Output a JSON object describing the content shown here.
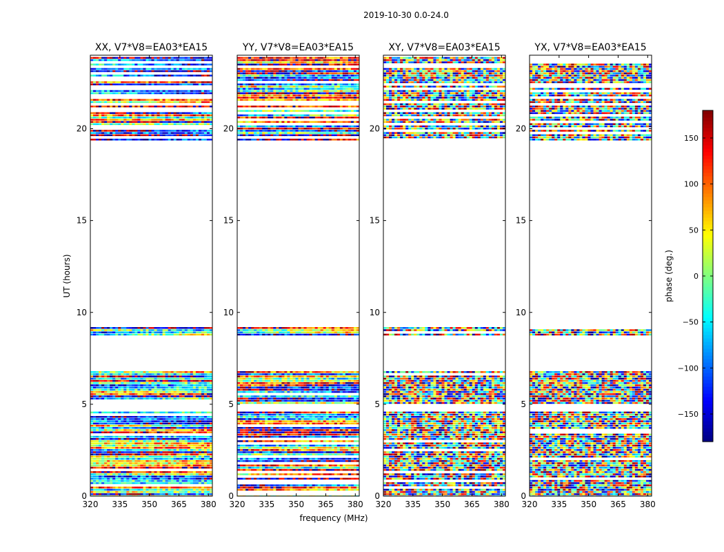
{
  "chart_data": {
    "type": "heatmap",
    "suptitle": "2019-10-30 0.0-24.0",
    "xlabel": "frequency (MHz)",
    "ylabel": "UT (hours)",
    "xlim": [
      320,
      382
    ],
    "ylim": [
      0,
      24
    ],
    "x_ticks": [
      320,
      335,
      350,
      365,
      380
    ],
    "y_ticks": [
      0,
      5,
      10,
      15,
      20
    ],
    "panels": [
      {
        "title": "XX, V7*V8=EA03*EA15",
        "pol": "XX",
        "structured": true,
        "bands": [
          [
            0.0,
            4.6
          ],
          [
            5.0,
            6.8
          ],
          [
            8.8,
            9.2
          ],
          [
            19.4,
            23.9
          ]
        ]
      },
      {
        "title": "YY, V7*V8=EA03*EA15",
        "pol": "YY",
        "structured": true,
        "bands": [
          [
            0.0,
            4.6
          ],
          [
            5.0,
            6.8
          ],
          [
            8.8,
            9.2
          ],
          [
            19.4,
            23.9
          ]
        ]
      },
      {
        "title": "XY, V7*V8=EA03*EA15",
        "pol": "XY",
        "structured": false,
        "bands": [
          [
            0.0,
            4.6
          ],
          [
            5.0,
            6.8
          ],
          [
            8.8,
            9.2
          ],
          [
            19.4,
            23.9
          ]
        ]
      },
      {
        "title": "YX, V7*V8=EA03*EA15",
        "pol": "YX",
        "structured": false,
        "bands": [
          [
            0.0,
            4.6
          ],
          [
            5.0,
            6.8
          ],
          [
            8.8,
            9.2
          ],
          [
            19.4,
            23.9
          ]
        ]
      }
    ],
    "colorbar": {
      "label": "phase (deg.)",
      "range": [
        -180,
        180
      ],
      "ticks": [
        -150,
        -100,
        -50,
        0,
        50,
        100,
        150
      ],
      "tick_labels": [
        "−150",
        "−100",
        "−50",
        "0",
        "50",
        "100",
        "150"
      ],
      "colormap": "jet"
    }
  }
}
